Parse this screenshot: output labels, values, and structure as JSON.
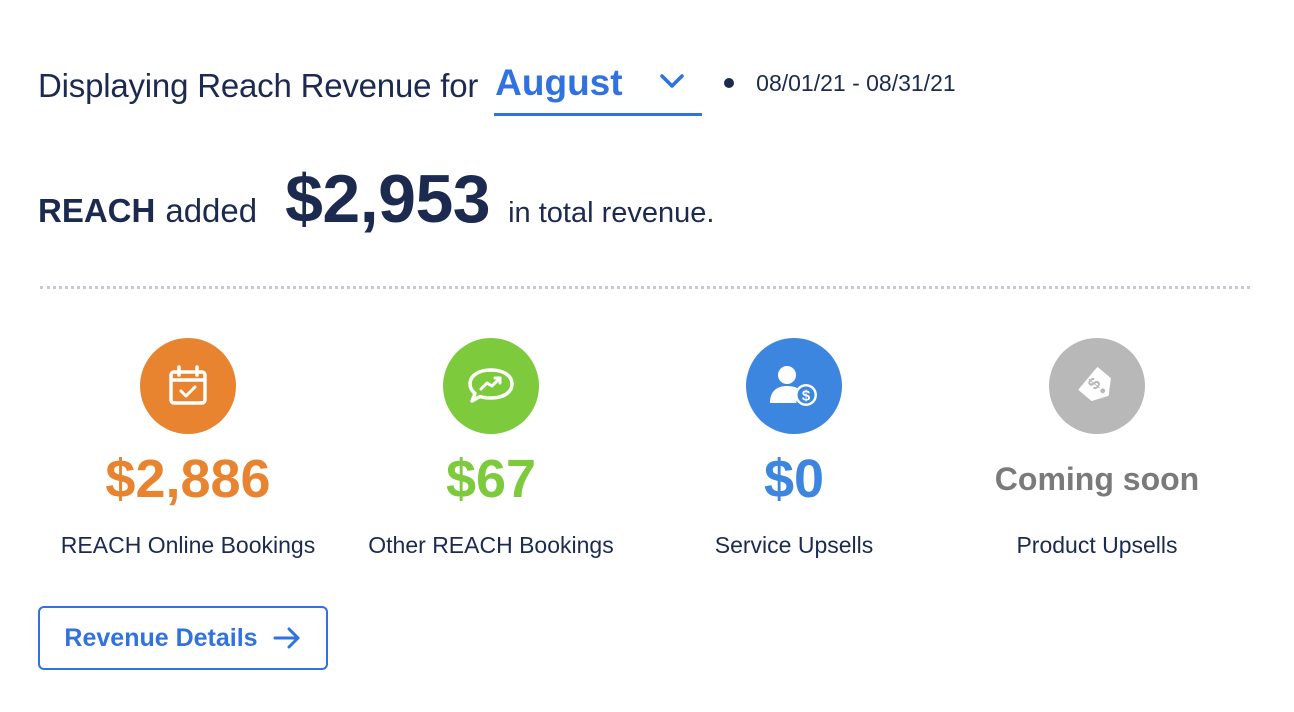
{
  "header": {
    "prefix": "Displaying Reach Revenue for",
    "month": "August",
    "date_range": "08/01/21 - 08/31/21"
  },
  "summary": {
    "brand": "REACH",
    "added": "added",
    "total": "$2,953",
    "suffix": "in total revenue."
  },
  "metrics": [
    {
      "value": "$2,886",
      "label": "REACH Online Bookings",
      "color": "#e8842f",
      "icon": "calendar-check-icon"
    },
    {
      "value": "$67",
      "label": "Other REACH Bookings",
      "color": "#7dcb3c",
      "icon": "chat-trend-icon"
    },
    {
      "value": "$0",
      "label": "Service Upsells",
      "color": "#3c86e0",
      "icon": "user-dollar-icon"
    },
    {
      "value": "Coming soon",
      "label": "Product Upsells",
      "color": "#b8b8b8",
      "icon": "price-tag-icon"
    }
  ],
  "details_button": {
    "label": "Revenue Details"
  },
  "colors": {
    "primary": "#2f72e0",
    "text": "#1c2a4f"
  }
}
